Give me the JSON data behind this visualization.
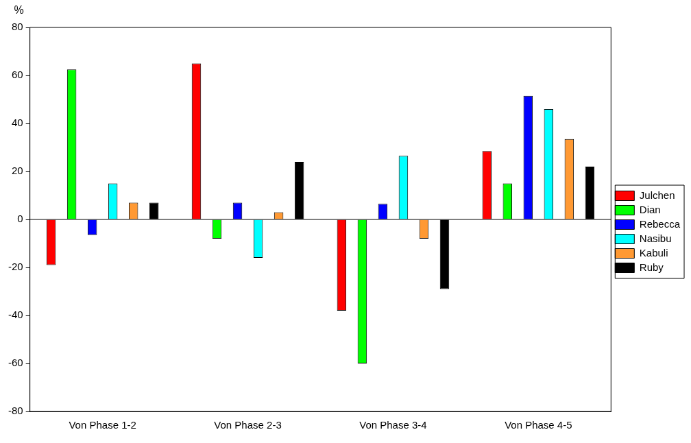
{
  "chart_data": {
    "type": "bar",
    "ylabel": "%",
    "categories": [
      "Von Phase 1-2",
      "Von Phase 2-3",
      "Von Phase 3-4",
      "Von Phase 4-5"
    ],
    "series": [
      {
        "name": "Julchen",
        "color": "#ff0000",
        "values": [
          -19,
          65,
          -38,
          28.5
        ]
      },
      {
        "name": "Dian",
        "color": "#00ff00",
        "values": [
          62.5,
          -8,
          -60,
          15
        ]
      },
      {
        "name": "Rebecca",
        "color": "#0000ff",
        "values": [
          -6.5,
          7,
          6.5,
          51.5
        ]
      },
      {
        "name": "Nasibu",
        "color": "#00ffff",
        "values": [
          15,
          -16,
          26.5,
          46
        ]
      },
      {
        "name": "Kabuli",
        "color": "#ff9933",
        "values": [
          7,
          3,
          -8,
          33.5
        ]
      },
      {
        "name": "Ruby",
        "color": "#000000",
        "values": [
          7,
          24,
          -29,
          22
        ]
      }
    ],
    "ylim": [
      -80,
      80
    ],
    "yticks": [
      -80,
      -60,
      -40,
      -20,
      0,
      20,
      40,
      60,
      80
    ],
    "ref_lines": [
      {
        "axis": "y",
        "value": 0,
        "color": "#000000"
      }
    ],
    "grid": false,
    "legend": "right"
  }
}
